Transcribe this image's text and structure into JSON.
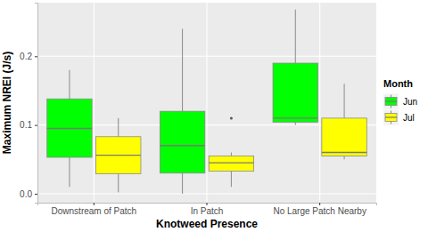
{
  "chart_data": {
    "type": "boxplot",
    "x_label": "Knotweed Presence",
    "y_label": "Maximum NREI (J/s)",
    "legend_title": "Month",
    "legend": "right",
    "grid": true,
    "categories": [
      "Downstream of Patch",
      "In Patch",
      "No Large Patch Nearby"
    ],
    "ylim": [
      -0.013,
      0.278
    ],
    "yticks": [
      {
        "value": 0,
        "label": "0.0"
      },
      0.1,
      0.2
    ],
    "series": [
      {
        "name": "Jun",
        "color": "#00FF00",
        "values": [
          {
            "low": 0.01,
            "q1": 0.053,
            "median": 0.095,
            "q3": 0.138,
            "high": 0.18,
            "outliers": []
          },
          {
            "low": 0.0,
            "q1": 0.03,
            "median": 0.07,
            "q3": 0.12,
            "high": 0.24,
            "outliers": []
          },
          {
            "low": 0.1,
            "q1": 0.104,
            "median": 0.11,
            "q3": 0.19,
            "high": 0.268,
            "outliers": []
          }
        ]
      },
      {
        "name": "Jul",
        "color": "#FFFF00",
        "values": [
          {
            "low": 0.002,
            "q1": 0.029,
            "median": 0.056,
            "q3": 0.083,
            "high": 0.11,
            "outliers": []
          },
          {
            "low": 0.01,
            "q1": 0.033,
            "median": 0.045,
            "q3": 0.055,
            "high": 0.06,
            "outliers": [
              0.11
            ]
          },
          {
            "low": 0.05,
            "q1": 0.055,
            "median": 0.06,
            "q3": 0.11,
            "high": 0.16,
            "outliers": []
          }
        ]
      }
    ]
  }
}
